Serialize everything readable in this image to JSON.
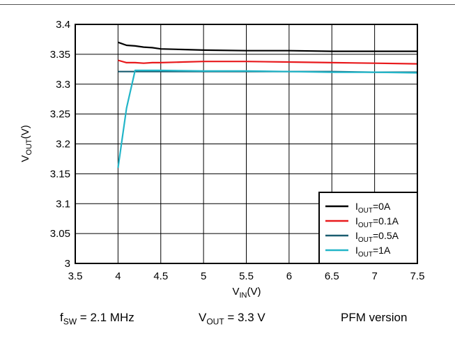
{
  "chart_data": {
    "type": "line",
    "title": "",
    "xlabel": {
      "main": "V",
      "sub": "IN",
      "tail": "(V)"
    },
    "ylabel": {
      "main": "V",
      "sub": "OUT",
      "tail": "(V)"
    },
    "xlim": [
      3.5,
      7.5
    ],
    "ylim": [
      3.0,
      3.4
    ],
    "x_ticks": [
      3.5,
      4,
      4.5,
      5,
      5.5,
      6,
      6.5,
      7,
      7.5
    ],
    "x_tick_labels": [
      "3.5",
      "4",
      "4.5",
      "5",
      "5.5",
      "6",
      "6.5",
      "7",
      "7.5"
    ],
    "y_ticks": [
      3.0,
      3.05,
      3.1,
      3.15,
      3.2,
      3.25,
      3.3,
      3.35,
      3.4
    ],
    "y_tick_labels": [
      "3",
      "3.05",
      "3.1",
      "3.15",
      "3.2",
      "3.25",
      "3.3",
      "3.35",
      "3.4"
    ],
    "grid": true,
    "legend_position": "bottom-right",
    "series": [
      {
        "name": "I",
        "name_sub": "OUT",
        "name_tail": "=0A",
        "color": "#000000",
        "x": [
          4.0,
          4.1,
          4.2,
          4.3,
          4.4,
          4.5,
          4.75,
          5.0,
          5.5,
          6.0,
          6.5,
          7.0,
          7.5
        ],
        "y": [
          3.37,
          3.365,
          3.364,
          3.362,
          3.361,
          3.359,
          3.358,
          3.357,
          3.356,
          3.356,
          3.355,
          3.355,
          3.355
        ]
      },
      {
        "name": "I",
        "name_sub": "OUT",
        "name_tail": "=0.1A",
        "color": "#e8191c",
        "x": [
          4.0,
          4.1,
          4.2,
          4.3,
          4.4,
          4.5,
          4.75,
          5.0,
          5.25,
          5.5,
          6.0,
          6.5,
          7.0,
          7.5
        ],
        "y": [
          3.34,
          3.336,
          3.336,
          3.335,
          3.336,
          3.336,
          3.337,
          3.338,
          3.338,
          3.338,
          3.337,
          3.336,
          3.335,
          3.334
        ]
      },
      {
        "name": "I",
        "name_sub": "OUT",
        "name_tail": "=0.5A",
        "color": "#1a5d70",
        "x": [
          4.0,
          4.25,
          4.5,
          5.0,
          5.5,
          6.0,
          6.5,
          7.0,
          7.5
        ],
        "y": [
          3.321,
          3.321,
          3.321,
          3.321,
          3.321,
          3.321,
          3.321,
          3.32,
          3.32
        ]
      },
      {
        "name": "I",
        "name_sub": "OUT",
        "name_tail": "=1A",
        "color": "#22b5c8",
        "x": [
          4.0,
          4.1,
          4.2,
          4.3,
          4.5,
          5.0,
          5.5,
          6.0,
          6.5,
          7.0,
          7.5
        ],
        "y": [
          3.16,
          3.26,
          3.323,
          3.323,
          3.323,
          3.322,
          3.322,
          3.321,
          3.32,
          3.32,
          3.319
        ]
      }
    ]
  },
  "footer": {
    "fsw": {
      "main": "f",
      "sub": "SW",
      "tail": " = 2.1 MHz"
    },
    "vout": {
      "main": "V",
      "sub": "OUT",
      "tail": " = 3.3 V"
    },
    "version": "PFM version"
  }
}
